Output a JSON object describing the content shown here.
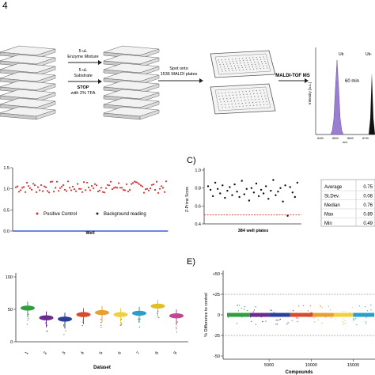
{
  "panel_labels": {
    "top": "4",
    "c": "C)",
    "e": "E)"
  },
  "workflow": {
    "step1": [
      "5 uL",
      "Enzyme Mixture",
      "5 uL",
      "Substrate",
      "STOP",
      "with 2% TFA"
    ],
    "step2": [
      "Spot onto",
      "1536 MALDI plates"
    ],
    "step3": "MALDI-TOF MS",
    "spectrum": {
      "peak1": "Ub",
      "peak2": "Ub-",
      "time": "60 min",
      "ylabel": "Intensity [a.u.]",
      "xlabel": "m/z",
      "xticks": [
        "8400",
        "8500",
        "8600",
        "8700"
      ]
    }
  },
  "panel_b": {
    "yticks": [
      "1.5",
      "1.0",
      "0.5",
      "0.0"
    ],
    "xlabel": "Well",
    "legend": [
      "Positive Control",
      "Background reading"
    ],
    "colors": {
      "positive": "#e03030",
      "background": "#2a50c8"
    }
  },
  "panel_c": {
    "yticks": [
      "1.0",
      "0.8",
      "0.6",
      "0.4"
    ],
    "ylabel": "Z-Prime Score",
    "xlabel": "384 well plates",
    "threshold_color": "#d83030",
    "stats": [
      {
        "label": "Average",
        "value": "0.75"
      },
      {
        "label": "St.Dev.",
        "value": "0.08"
      },
      {
        "label": "Median",
        "value": "0.76"
      },
      {
        "label": "Max",
        "value": "0.89"
      },
      {
        "label": "Min",
        "value": "0.49"
      }
    ]
  },
  "panel_d": {
    "yticks": [
      "100",
      "50",
      "0"
    ],
    "xticks": [
      "1",
      "2",
      "3",
      "4",
      "5",
      "6",
      "7",
      "8",
      "9"
    ],
    "xlabel": "Dataset",
    "colors": [
      "#2e9e3e",
      "#6a2c8e",
      "#2a3f9a",
      "#d84b2a",
      "#e8a030",
      "#f0d040",
      "#2a9ec8",
      "#e0c020",
      "#c04890"
    ]
  },
  "panel_e": {
    "yticks": [
      "+50",
      "+25",
      "0",
      "-25",
      "-50"
    ],
    "xticks": [
      "5000",
      "10000",
      "15000"
    ],
    "ylabel": "% Difference to control",
    "xlabel": "Compounds",
    "segment_colors": [
      "#2e9e3e",
      "#6a2c8e",
      "#2a3f9a",
      "#d84b2a",
      "#e8a030",
      "#f0d040",
      "#2a9ec8"
    ]
  },
  "chart_data": [
    {
      "type": "scatter",
      "xlabel": "Well",
      "ylim": [
        0,
        1.5
      ],
      "series": [
        {
          "name": "Positive Control",
          "y_range": [
            0.9,
            1.18
          ]
        },
        {
          "name": "Background reading",
          "y": 0.0
        }
      ]
    },
    {
      "type": "scatter",
      "xlabel": "384 well plates",
      "ylabel": "Z-Prime Score",
      "ylim": [
        0.4,
        1.0
      ],
      "threshold": 0.5,
      "values": [
        0.82,
        0.78,
        0.71,
        0.86,
        0.79,
        0.74,
        0.83,
        0.69,
        0.77,
        0.81,
        0.72,
        0.84,
        0.76,
        0.7,
        0.88,
        0.73,
        0.79,
        0.66,
        0.8,
        0.75,
        0.85,
        0.71,
        0.78,
        0.74,
        0.82,
        0.68,
        0.77,
        0.89,
        0.72,
        0.76,
        0.8,
        0.65,
        0.83,
        0.49,
        0.81,
        0.75,
        0.7,
        0.86
      ]
    },
    {
      "type": "scatter",
      "xlabel": "Dataset",
      "ylim": [
        0,
        100
      ],
      "categories": [
        "1",
        "2",
        "3",
        "4",
        "5",
        "6",
        "7",
        "8",
        "9"
      ],
      "medians": [
        52,
        37,
        35,
        42,
        45,
        42,
        44,
        55,
        40
      ]
    },
    {
      "type": "scatter",
      "xlabel": "Compounds",
      "ylabel": "% Difference to control",
      "ylim": [
        -50,
        50
      ],
      "control_lines": [
        25,
        -25
      ],
      "segments": [
        [
          0,
          2700
        ],
        [
          2700,
          5000
        ],
        [
          5000,
          7500
        ],
        [
          7500,
          10200
        ],
        [
          10200,
          12700
        ],
        [
          12700,
          15000
        ],
        [
          15000,
          17500
        ]
      ]
    }
  ]
}
